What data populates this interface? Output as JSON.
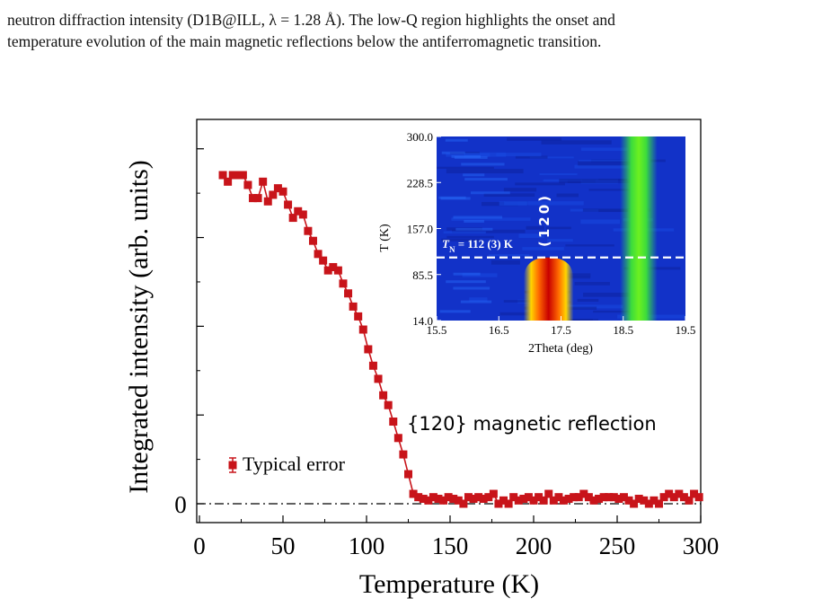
{
  "caption": {
    "line1": "neutron diffraction intensity (D1B@ILL, λ = 1.28 Å). The low-Q region highlights the onset and",
    "line2": "temperature evolution of the main magnetic reflections below the antiferromagnetic transition."
  },
  "chart_data": [
    {
      "type": "scatter",
      "title": "",
      "xlabel": "Temperature (K)",
      "ylabel": "Integrated intensity (arb. units)",
      "xlim": [
        0,
        300
      ],
      "ylim": [
        -0.05,
        1.05
      ],
      "x_ticks": [
        "0",
        "50",
        "100",
        "150",
        "200",
        "250",
        "300"
      ],
      "y_tick_labels": [
        "0"
      ],
      "reference_line": {
        "y": 0,
        "style": "dash-dot"
      },
      "marker_color": "#c8141a",
      "legend": {
        "label": "Typical error",
        "position": "lower-left"
      },
      "annotation": "{120} magnetic reflection",
      "series": [
        {
          "name": "Typical error",
          "x": [
            14,
            17,
            20,
            23,
            26,
            29,
            32,
            35,
            38,
            41,
            44,
            47,
            50,
            53,
            56,
            59,
            62,
            65,
            68,
            71,
            74,
            77,
            80,
            83,
            86,
            89,
            92,
            95,
            98,
            101,
            104,
            107,
            110,
            113,
            116,
            119,
            122,
            125,
            128,
            131,
            134,
            137,
            140,
            143,
            146,
            149,
            152,
            155,
            158,
            161,
            164,
            167,
            170,
            173,
            176,
            179,
            182,
            185,
            188,
            191,
            194,
            197,
            200,
            203,
            206,
            209,
            212,
            215,
            218,
            221,
            224,
            227,
            230,
            233,
            236,
            239,
            242,
            245,
            248,
            251,
            254,
            257,
            260,
            263,
            266,
            269,
            272,
            275,
            278,
            281,
            284,
            287,
            290,
            293,
            296,
            299
          ],
          "y": [
            1.0,
            0.98,
            1.0,
            1.0,
            1.0,
            0.97,
            0.93,
            0.93,
            0.98,
            0.92,
            0.94,
            0.96,
            0.95,
            0.91,
            0.87,
            0.89,
            0.88,
            0.83,
            0.8,
            0.76,
            0.74,
            0.71,
            0.72,
            0.71,
            0.67,
            0.64,
            0.6,
            0.57,
            0.53,
            0.47,
            0.42,
            0.38,
            0.33,
            0.3,
            0.25,
            0.2,
            0.15,
            0.09,
            0.03,
            0.02,
            0.015,
            0.01,
            0.02,
            0.015,
            0.01,
            0.02,
            0.015,
            0.01,
            0.0,
            0.02,
            0.015,
            0.02,
            0.015,
            0.02,
            0.03,
            0.0,
            0.01,
            0.0,
            0.02,
            0.01,
            0.015,
            0.02,
            0.01,
            0.02,
            0.01,
            0.03,
            0.01,
            0.02,
            0.01,
            0.015,
            0.02,
            0.02,
            0.03,
            0.02,
            0.01,
            0.015,
            0.02,
            0.02,
            0.02,
            0.015,
            0.02,
            0.01,
            0.0,
            0.015,
            0.01,
            0.0,
            0.01,
            0.0,
            0.02,
            0.03,
            0.02,
            0.03,
            0.02,
            0.01,
            0.03,
            0.02
          ]
        }
      ]
    },
    {
      "type": "heatmap",
      "xlabel": "2Theta  (deg)",
      "ylabel": "T (K)",
      "xlim": [
        15.5,
        19.5
      ],
      "ylim": [
        14.0,
        300.0
      ],
      "x_ticks": [
        "15.5",
        "16.5",
        "17.5",
        "18.5",
        "19.5"
      ],
      "y_ticks": [
        "14.0",
        "85.5",
        "157.0",
        "228.5",
        "300.0"
      ],
      "peaks": [
        {
          "label": "(120)",
          "center_2theta": 17.3,
          "width": 0.4,
          "T_max": 112,
          "colormap": "red-yellow"
        },
        {
          "label": "",
          "center_2theta": 18.75,
          "width": 0.3,
          "T_max": 300,
          "colormap": "green"
        }
      ],
      "transition_line": {
        "T": 112,
        "style": "dashed",
        "label_main": "T",
        "label_sub": "N",
        "label_rest": " = 112 (3) K"
      },
      "background_color": "#1232c8"
    }
  ]
}
